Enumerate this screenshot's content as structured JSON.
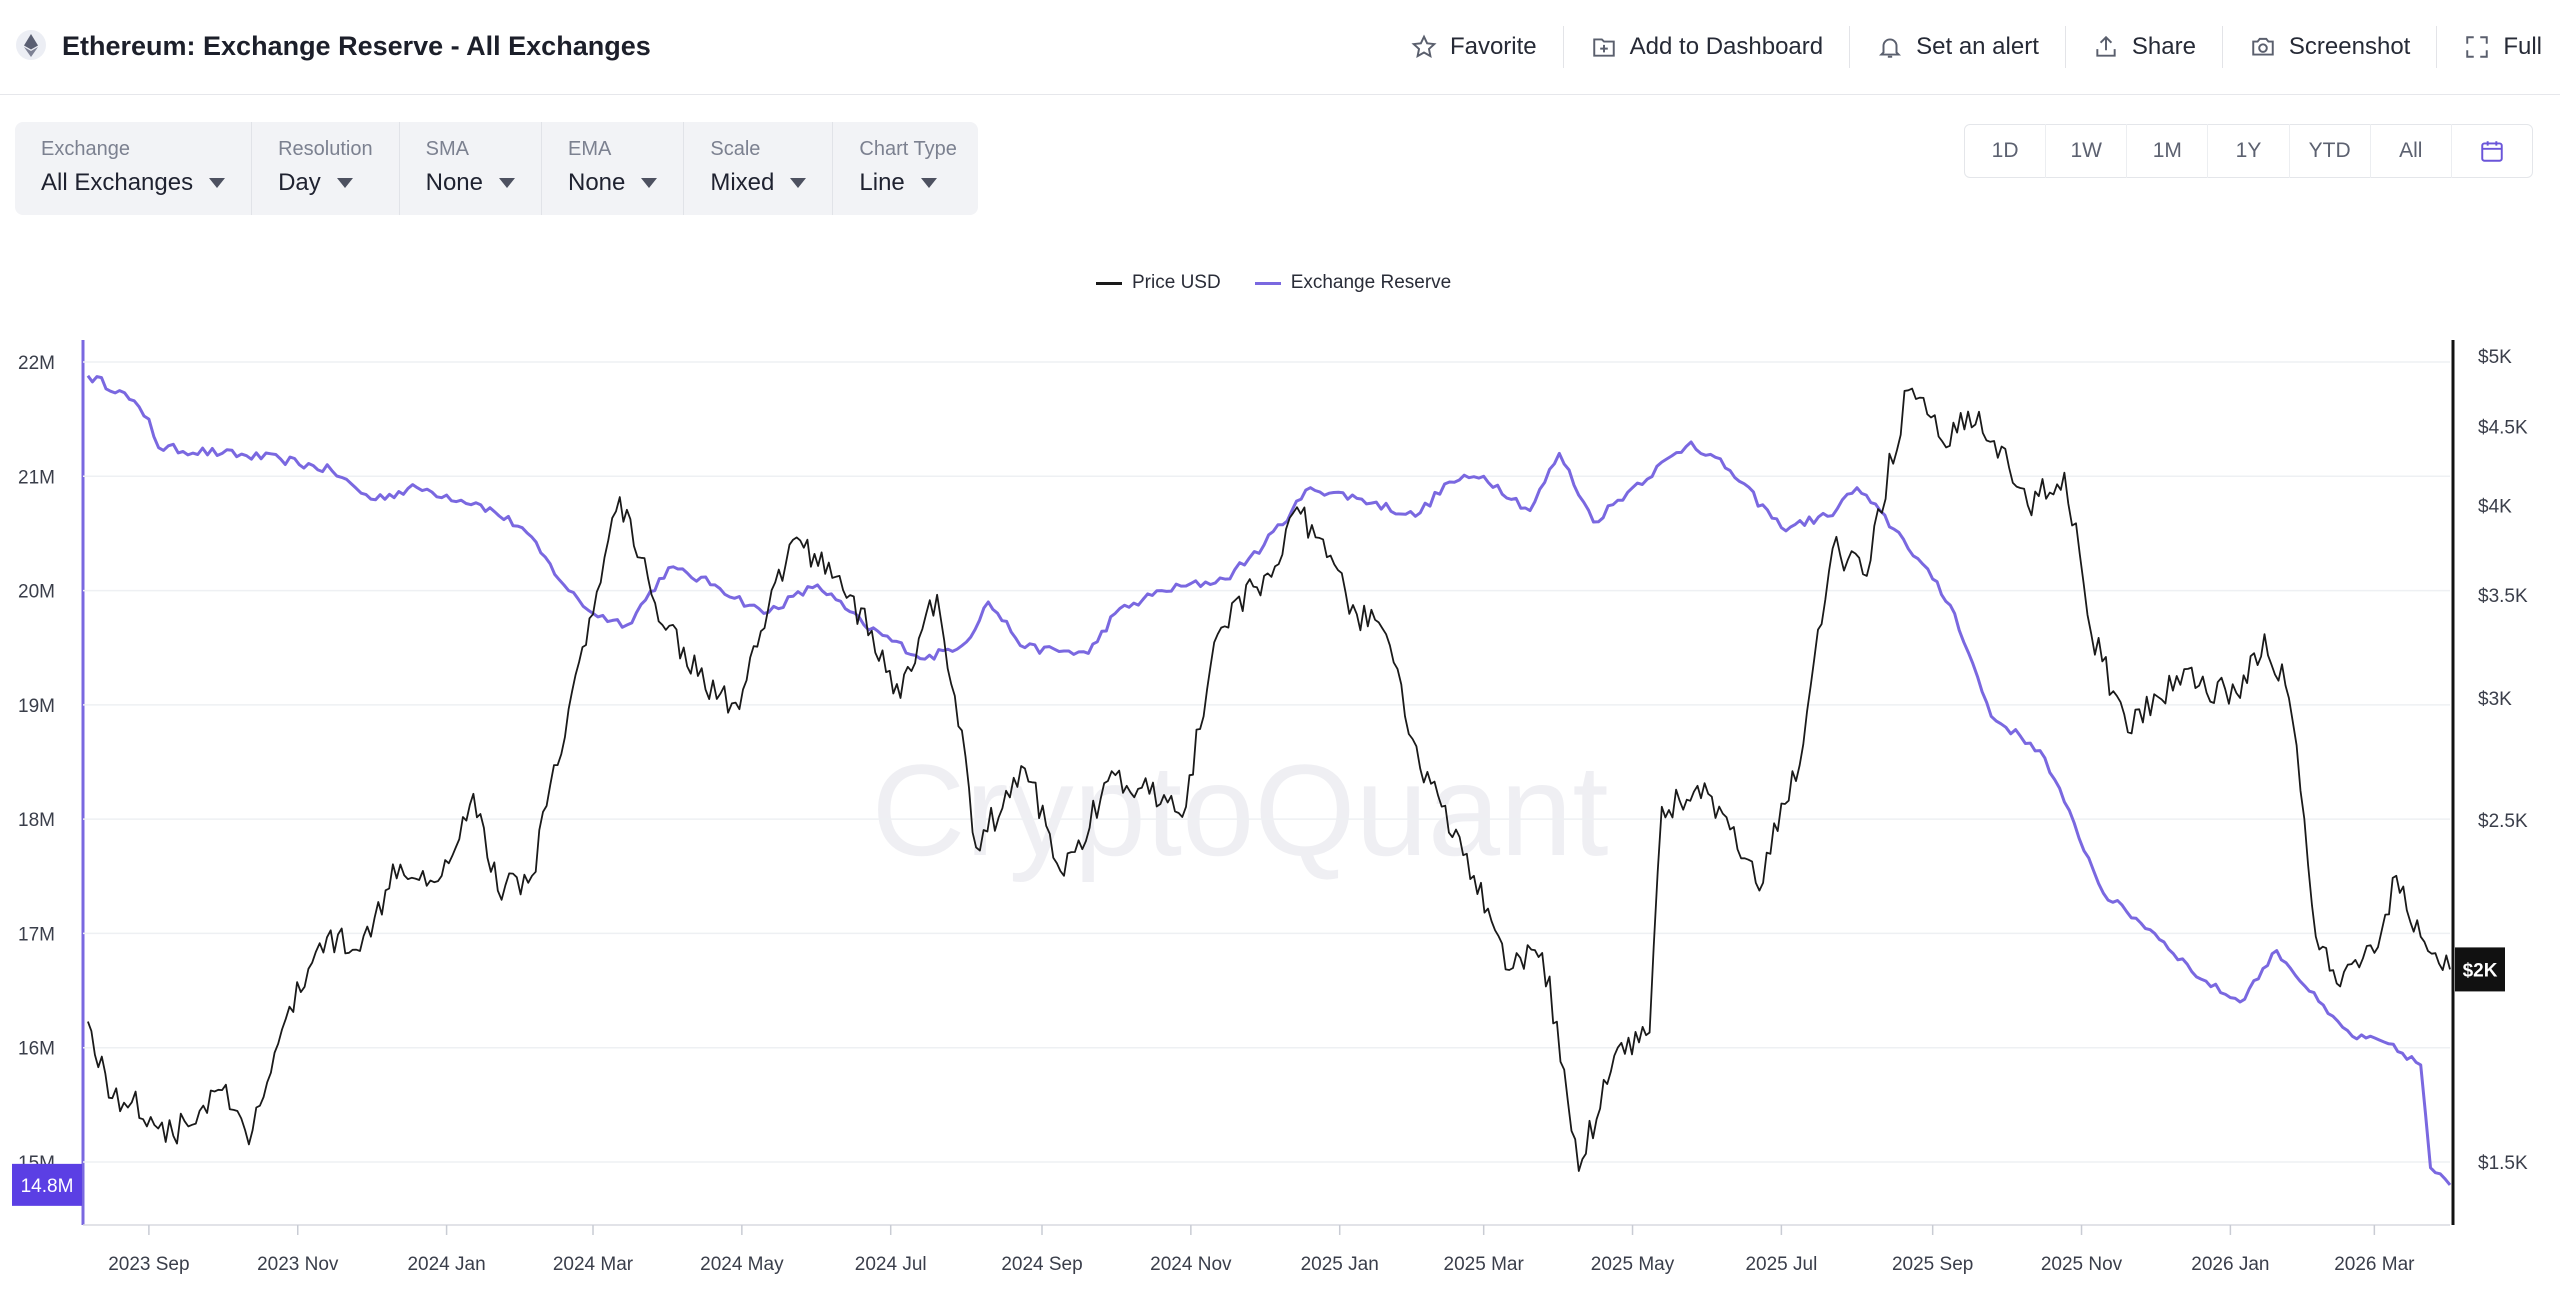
{
  "header": {
    "title": "Ethereum: Exchange Reserve - All Exchanges",
    "logo_icon": "ethereum-icon",
    "actions": [
      {
        "label": "Favorite",
        "icon": "star-icon"
      },
      {
        "label": "Add to Dashboard",
        "icon": "dashboard-add-icon"
      },
      {
        "label": "Set an alert",
        "icon": "bell-icon"
      },
      {
        "label": "Share",
        "icon": "share-icon"
      },
      {
        "label": "Screenshot",
        "icon": "camera-icon"
      },
      {
        "label": "Full",
        "icon": "fullscreen-icon"
      }
    ]
  },
  "toolbar": {
    "items": [
      {
        "label": "Exchange",
        "value": "All Exchanges"
      },
      {
        "label": "Resolution",
        "value": "Day"
      },
      {
        "label": "SMA",
        "value": "None"
      },
      {
        "label": "EMA",
        "value": "None"
      },
      {
        "label": "Scale",
        "value": "Mixed"
      },
      {
        "label": "Chart Type",
        "value": "Line"
      }
    ]
  },
  "ranges": [
    "1D",
    "1W",
    "1M",
    "1Y",
    "YTD",
    "All"
  ],
  "colors": {
    "price": "#1a1a1a",
    "reserve": "#7a68e0",
    "reserve_badge": "#5b3fe4",
    "price_badge": "#111111"
  },
  "watermark": "CryptoQuant",
  "chart_data": {
    "type": "line",
    "legend": [
      "Price USD",
      "Exchange Reserve"
    ],
    "legend_placement": "top-center",
    "grid": true,
    "x_ticks": [
      "2023 Sep",
      "2023 Nov",
      "2024 Jan",
      "2024 Mar",
      "2024 May",
      "2024 Jul",
      "2024 Sep",
      "2024 Nov",
      "2025 Jan",
      "2025 Mar",
      "2025 May",
      "2025 Jul",
      "2025 Sep",
      "2025 Nov",
      "2026 Jan",
      "2026 Mar"
    ],
    "x_range": [
      "2023-08-05",
      "2026-04-01"
    ],
    "left_axis": {
      "ticks": [
        "22M",
        "21M",
        "20M",
        "19M",
        "18M",
        "17M",
        "16M",
        "15M"
      ],
      "range": [
        14.6,
        22.2
      ],
      "unit": "M"
    },
    "right_axis": {
      "ticks": [
        "$5K",
        "$4.5K",
        "$4K",
        "$3.5K",
        "$3K",
        "$2.5K",
        "$1.5K"
      ],
      "scale": "log"
    },
    "current_reserve_label": "14.8M",
    "current_price_label": "$2K",
    "series": [
      {
        "name": "Exchange Reserve",
        "axis": "left",
        "points": [
          [
            "2023-08-07",
            21.88
          ],
          [
            "2023-08-20",
            21.75
          ],
          [
            "2023-09-01",
            21.5
          ],
          [
            "2023-09-05",
            21.25
          ],
          [
            "2023-10-01",
            21.2
          ],
          [
            "2023-10-25",
            21.15
          ],
          [
            "2023-11-15",
            21.05
          ],
          [
            "2023-12-01",
            20.8
          ],
          [
            "2023-12-20",
            20.9
          ],
          [
            "2024-01-15",
            20.75
          ],
          [
            "2024-02-01",
            20.55
          ],
          [
            "2024-02-20",
            20.0
          ],
          [
            "2024-03-01",
            19.8
          ],
          [
            "2024-03-15",
            19.7
          ],
          [
            "2024-04-01",
            20.2
          ],
          [
            "2024-04-20",
            20.05
          ],
          [
            "2024-05-10",
            19.8
          ],
          [
            "2024-06-01",
            20.05
          ],
          [
            "2024-06-20",
            19.7
          ],
          [
            "2024-07-15",
            19.4
          ],
          [
            "2024-08-01",
            19.55
          ],
          [
            "2024-08-10",
            19.9
          ],
          [
            "2024-08-25",
            19.5
          ],
          [
            "2024-09-20",
            19.45
          ],
          [
            "2024-10-01",
            19.8
          ],
          [
            "2024-10-20",
            20.0
          ],
          [
            "2024-11-15",
            20.1
          ],
          [
            "2024-12-01",
            20.4
          ],
          [
            "2024-12-20",
            20.9
          ],
          [
            "2025-01-10",
            20.8
          ],
          [
            "2025-02-01",
            20.65
          ],
          [
            "2025-02-15",
            20.95
          ],
          [
            "2025-03-01",
            21.0
          ],
          [
            "2025-03-20",
            20.7
          ],
          [
            "2025-04-01",
            21.2
          ],
          [
            "2025-04-15",
            20.6
          ],
          [
            "2025-05-01",
            20.9
          ],
          [
            "2025-05-25",
            21.3
          ],
          [
            "2025-06-10",
            21.05
          ],
          [
            "2025-07-01",
            20.55
          ],
          [
            "2025-07-20",
            20.65
          ],
          [
            "2025-08-01",
            20.9
          ],
          [
            "2025-08-20",
            20.45
          ],
          [
            "2025-09-01",
            20.1
          ],
          [
            "2025-09-10",
            19.8
          ],
          [
            "2025-09-25",
            18.9
          ],
          [
            "2025-10-15",
            18.6
          ],
          [
            "2025-10-25",
            18.15
          ],
          [
            "2025-11-10",
            17.35
          ],
          [
            "2025-12-01",
            17.0
          ],
          [
            "2025-12-20",
            16.6
          ],
          [
            "2026-01-05",
            16.4
          ],
          [
            "2026-01-20",
            16.85
          ],
          [
            "2026-02-10",
            16.3
          ],
          [
            "2026-02-20",
            16.1
          ],
          [
            "2026-03-05",
            16.05
          ],
          [
            "2026-03-20",
            15.85
          ],
          [
            "2026-03-24",
            14.95
          ],
          [
            "2026-04-01",
            14.8
          ]
        ]
      },
      {
        "name": "Price USD",
        "axis": "right",
        "points": [
          [
            "2023-08-07",
            1850
          ],
          [
            "2023-08-17",
            1650
          ],
          [
            "2023-08-25",
            1640
          ],
          [
            "2023-09-11",
            1560
          ],
          [
            "2023-10-01",
            1670
          ],
          [
            "2023-10-12",
            1540
          ],
          [
            "2023-10-24",
            1790
          ],
          [
            "2023-11-10",
            2080
          ],
          [
            "2023-12-01",
            2100
          ],
          [
            "2023-12-10",
            2340
          ],
          [
            "2023-12-30",
            2300
          ],
          [
            "2024-01-12",
            2600
          ],
          [
            "2024-01-22",
            2250
          ],
          [
            "2024-02-05",
            2300
          ],
          [
            "2024-02-20",
            2950
          ],
          [
            "2024-03-01",
            3400
          ],
          [
            "2024-03-12",
            4050
          ],
          [
            "2024-03-25",
            3500
          ],
          [
            "2024-04-13",
            3100
          ],
          [
            "2024-04-30",
            2950
          ],
          [
            "2024-05-22",
            3800
          ],
          [
            "2024-06-10",
            3600
          ],
          [
            "2024-07-05",
            3000
          ],
          [
            "2024-07-20",
            3500
          ],
          [
            "2024-08-05",
            2400
          ],
          [
            "2024-08-25",
            2700
          ],
          [
            "2024-09-10",
            2300
          ],
          [
            "2024-09-28",
            2650
          ],
          [
            "2024-10-15",
            2600
          ],
          [
            "2024-10-30",
            2550
          ],
          [
            "2024-11-12",
            3300
          ],
          [
            "2024-12-01",
            3600
          ],
          [
            "2024-12-16",
            3950
          ],
          [
            "2025-01-08",
            3400
          ],
          [
            "2025-01-20",
            3300
          ],
          [
            "2025-02-03",
            2700
          ],
          [
            "2025-02-25",
            2300
          ],
          [
            "2025-03-10",
            2000
          ],
          [
            "2025-03-25",
            2050
          ],
          [
            "2025-04-09",
            1480
          ],
          [
            "2025-04-25",
            1780
          ],
          [
            "2025-05-08",
            1820
          ],
          [
            "2025-05-13",
            2550
          ],
          [
            "2025-06-01",
            2600
          ],
          [
            "2025-06-22",
            2250
          ],
          [
            "2025-07-10",
            2800
          ],
          [
            "2025-07-22",
            3750
          ],
          [
            "2025-08-05",
            3600
          ],
          [
            "2025-08-22",
            4750
          ],
          [
            "2025-09-05",
            4400
          ],
          [
            "2025-09-20",
            4600
          ],
          [
            "2025-10-10",
            4000
          ],
          [
            "2025-10-25",
            4200
          ],
          [
            "2025-11-05",
            3300
          ],
          [
            "2025-11-20",
            2850
          ],
          [
            "2025-12-10",
            3100
          ],
          [
            "2026-01-05",
            3000
          ],
          [
            "2026-01-15",
            3300
          ],
          [
            "2026-01-25",
            3000
          ],
          [
            "2026-02-05",
            2100
          ],
          [
            "2026-02-15",
            1950
          ],
          [
            "2026-03-01",
            2050
          ],
          [
            "2026-03-10",
            2300
          ],
          [
            "2026-03-20",
            2100
          ],
          [
            "2026-04-01",
            2000
          ]
        ]
      }
    ]
  }
}
